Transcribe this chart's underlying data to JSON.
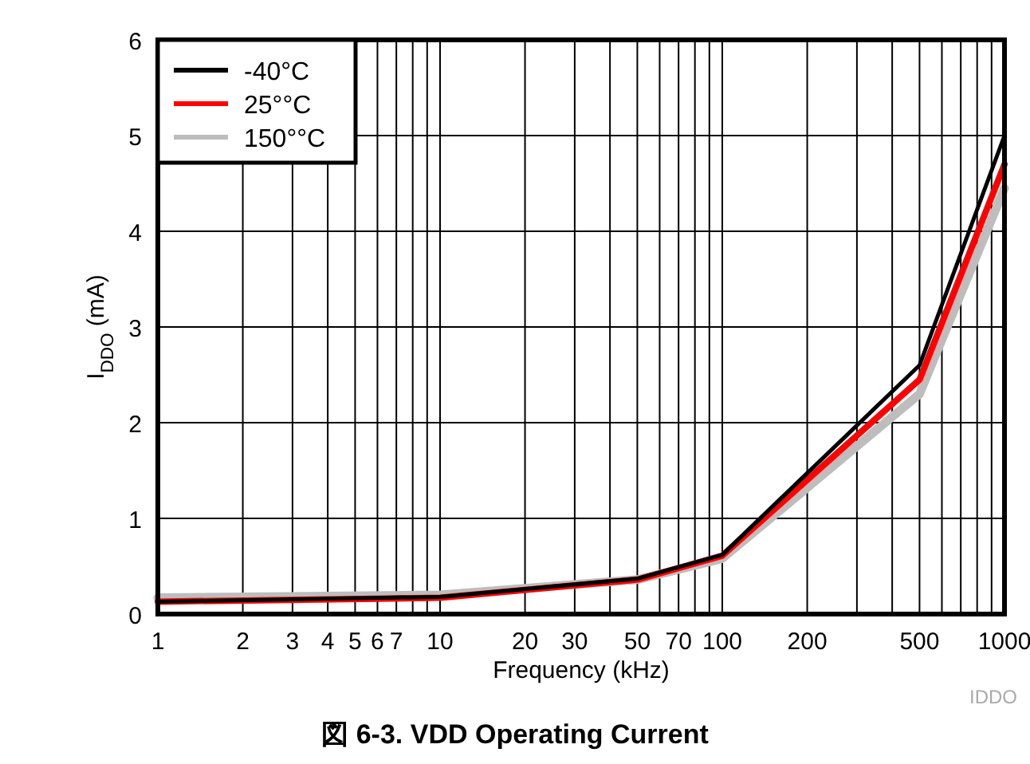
{
  "chart_data": {
    "type": "line",
    "title": "図 6-3. VDD Operating Current",
    "xlabel": "Frequency (kHz)",
    "ylabel": "I$_{DDO}$ (mA)",
    "annotations": [
      "IDDO"
    ],
    "log": "x",
    "grid": true,
    "legend": "top left",
    "line_style": "solid",
    "marker": "none",
    "xlim": [
      1,
      1000
    ],
    "ylim": [
      0,
      6
    ],
    "xticks": [
      1,
      2,
      3,
      4,
      5,
      6,
      7,
      {
        "value": 8,
        "label": null
      },
      {
        "value": 9,
        "label": null
      },
      10,
      20,
      30,
      {
        "value": 40,
        "label": null
      },
      50,
      {
        "value": 60,
        "label": null
      },
      70,
      {
        "value": 80,
        "label": null
      },
      {
        "value": 90,
        "label": null
      },
      100,
      200,
      {
        "value": 300,
        "label": null
      },
      {
        "value": 400,
        "label": null
      },
      500,
      {
        "value": 600,
        "label": null
      },
      {
        "value": 700,
        "label": null
      },
      {
        "value": 800,
        "label": null
      },
      {
        "value": 900,
        "label": null
      },
      1000
    ],
    "yticks": [
      0,
      1,
      2,
      3,
      4,
      5,
      6
    ],
    "x": [
      1,
      10,
      50,
      100,
      500,
      1000
    ],
    "series": [
      {
        "name": "150°°C",
        "color": "#bdbdbd",
        "values": [
          0.17,
          0.2,
          0.36,
          0.58,
          2.3,
          4.45
        ]
      },
      {
        "name": "25°°C",
        "color": "#ff0000",
        "values": [
          0.13,
          0.17,
          0.36,
          0.61,
          2.45,
          4.7
        ]
      },
      {
        "name": "-40°C",
        "color": "#000000",
        "values": [
          0.13,
          0.18,
          0.37,
          0.62,
          2.6,
          5.0
        ]
      }
    ]
  }
}
